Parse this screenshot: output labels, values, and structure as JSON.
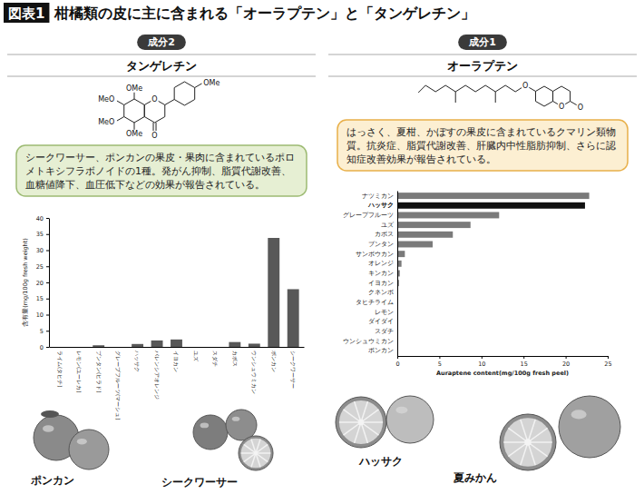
{
  "header": {
    "badge": "図表1",
    "title": "柑橘類の皮に主に含まれる「オーラプテン」と「タンゲレチン」"
  },
  "panels": [
    {
      "tag": "成分2",
      "name": "タンゲレチン",
      "description": "シークワーサー、ポンカンの果皮・果肉に含まれているポロメトキシフラボノイドの1種。発がん抑制、脂質代謝改善、血糖値降下、血圧低下などの効果が報告されている。",
      "structure_labels": [
        "OMe",
        "MeO",
        "MeO",
        "OMe",
        "O",
        "O",
        "OMe"
      ],
      "photo_labels": [
        "ポンカン",
        "シークワーサー"
      ]
    },
    {
      "tag": "成分1",
      "name": "オーラプテン",
      "description": "はっさく、夏柑、かぼすの果皮に含まれているクマリン類物質。抗炎症、脂質代謝改善、肝臓内中性脂肪抑制、さらに認知症改善効果が報告されている。",
      "structure_labels": [
        "O",
        "O",
        "O"
      ],
      "photo_labels": [
        "ハッサク",
        "夏みかん"
      ]
    }
  ],
  "chart_data": [
    {
      "type": "bar",
      "ylabel": "含有量(mg/100g fresh weight)",
      "categories": [
        "ライム(タヒチ)",
        "レモン(ユーレカ)",
        "ブンタン(ヒラド)",
        "グレープフルーツ(マーシュ)",
        "ハッサク",
        "バレンシアオレンジ",
        "イヨカン",
        "ユズ",
        "スダチ",
        "カボス",
        "ウンシュウミカン",
        "ポンカン",
        "シークワーサー"
      ],
      "values": [
        0,
        0,
        0.5,
        0,
        0.9,
        2.0,
        2.3,
        0,
        0,
        1.5,
        1.0,
        33.8,
        17.9
      ],
      "color": "#585858",
      "ylim": [
        0,
        40
      ],
      "yticks": [
        0,
        5,
        10,
        15,
        20,
        25,
        30,
        35,
        40
      ],
      "grid": false
    },
    {
      "type": "bar",
      "orientation": "horizontal",
      "xlabel": "Auraptene content(mg/100g fresh peel)",
      "categories": [
        "ナツミカン",
        "ハッサク",
        "グレープフルーツ",
        "ユズ",
        "カボス",
        "ブンタン",
        "サンボウカン",
        "オレンジ",
        "キンカン",
        "イヨカン",
        "クネンボ",
        "タヒチライム",
        "レモン",
        "ダイダイ",
        "スダチ",
        "ウンシュウミカン",
        "ポンカン"
      ],
      "values": [
        22.8,
        22.3,
        12.1,
        8.7,
        6.6,
        4.2,
        0.9,
        0.5,
        0.3,
        0.2,
        0.1,
        0,
        0,
        0,
        0,
        0,
        0
      ],
      "colors": [
        "#7a7a7a",
        "#111111",
        "#7a7a7a",
        "#7a7a7a",
        "#7a7a7a",
        "#7a7a7a",
        "#7a7a7a",
        "#7a7a7a",
        "#7a7a7a",
        "#7a7a7a",
        "#7a7a7a",
        "#7a7a7a",
        "#7a7a7a",
        "#7a7a7a",
        "#7a7a7a",
        "#7a7a7a",
        "#7a7a7a"
      ],
      "xlim": [
        0,
        25
      ],
      "xticks": [
        0,
        5,
        10,
        15,
        20,
        25
      ],
      "grid": false
    }
  ]
}
